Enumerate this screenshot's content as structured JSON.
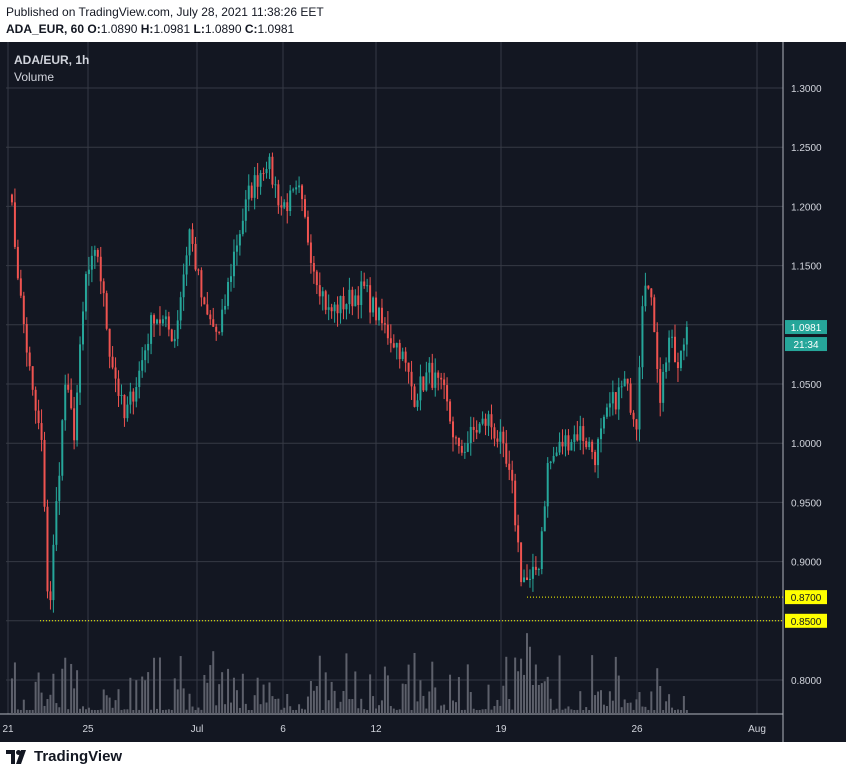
{
  "header": {
    "published": "Published on TradingView.com, July 28, 2021 11:38:26 EET",
    "symbol_interval": "ADA_EUR, 60",
    "o_label": "O:",
    "o_value": "1.0890",
    "h_label": "H:",
    "h_value": "1.0981",
    "l_label": "L:",
    "l_value": "1.0890",
    "c_label": "C:",
    "c_value": "1.0981"
  },
  "chart": {
    "title": "ADA/EUR, 1h",
    "volume_label": "Volume"
  },
  "footer": {
    "brand": "TradingView"
  },
  "colors": {
    "background": "#131722",
    "grid": "#363a45",
    "up": "#26a69a",
    "down": "#ef5350",
    "volume": "#5d606b",
    "axis_text": "#d1d4dc",
    "price_label": "#26a69a",
    "level": "#ffff00"
  },
  "chart_data": {
    "type": "candlestick",
    "symbol": "ADA/EUR",
    "interval": "1h",
    "ylim": [
      0.775,
      1.325
    ],
    "y_ticks": [
      "0.8000",
      "0.8500",
      "0.9000",
      "0.9500",
      "1.0000",
      "1.0500",
      "1.1000",
      "1.1500",
      "1.2000",
      "1.2500",
      "1.3000"
    ],
    "x_ticks": [
      "21",
      "25",
      "Jul",
      "6",
      "12",
      "19",
      "26",
      "Aug"
    ],
    "price_path": [
      {
        "x": 0,
        "y": 1.22
      },
      {
        "x": 4,
        "y": 1.12
      },
      {
        "x": 8,
        "y": 1.04
      },
      {
        "x": 11,
        "y": 1.0
      },
      {
        "x": 13.5,
        "y": 0.85
      },
      {
        "x": 15.5,
        "y": 0.93
      },
      {
        "x": 19,
        "y": 1.05
      },
      {
        "x": 22,
        "y": 1.01
      },
      {
        "x": 26,
        "y": 1.14
      },
      {
        "x": 30,
        "y": 1.16
      },
      {
        "x": 34,
        "y": 1.08
      },
      {
        "x": 39,
        "y": 1.02
      },
      {
        "x": 44,
        "y": 1.06
      },
      {
        "x": 49,
        "y": 1.11
      },
      {
        "x": 56,
        "y": 1.09
      },
      {
        "x": 61,
        "y": 1.18
      },
      {
        "x": 66,
        "y": 1.11
      },
      {
        "x": 71,
        "y": 1.09
      },
      {
        "x": 76,
        "y": 1.16
      },
      {
        "x": 81,
        "y": 1.21
      },
      {
        "x": 87,
        "y": 1.24
      },
      {
        "x": 92,
        "y": 1.2
      },
      {
        "x": 98,
        "y": 1.21
      },
      {
        "x": 103,
        "y": 1.15
      },
      {
        "x": 108,
        "y": 1.11
      },
      {
        "x": 114,
        "y": 1.12
      },
      {
        "x": 120,
        "y": 1.13
      },
      {
        "x": 126,
        "y": 1.1
      },
      {
        "x": 132,
        "y": 1.08
      },
      {
        "x": 137,
        "y": 1.04
      },
      {
        "x": 142,
        "y": 1.06
      },
      {
        "x": 147,
        "y": 1.04
      },
      {
        "x": 152,
        "y": 0.99
      },
      {
        "x": 157,
        "y": 1.01
      },
      {
        "x": 162,
        "y": 1.02
      },
      {
        "x": 166,
        "y": 1.0
      },
      {
        "x": 170,
        "y": 0.96
      },
      {
        "x": 173,
        "y": 0.89
      },
      {
        "x": 176,
        "y": 0.88
      },
      {
        "x": 179,
        "y": 0.9
      },
      {
        "x": 182,
        "y": 0.98
      },
      {
        "x": 187,
        "y": 1.0
      },
      {
        "x": 193,
        "y": 1.01
      },
      {
        "x": 198,
        "y": 0.99
      },
      {
        "x": 203,
        "y": 1.03
      },
      {
        "x": 208,
        "y": 1.05
      },
      {
        "x": 212,
        "y": 1.02
      },
      {
        "x": 214.5,
        "y": 1.15
      },
      {
        "x": 218,
        "y": 1.1
      },
      {
        "x": 220,
        "y": 1.04
      },
      {
        "x": 223,
        "y": 1.09
      },
      {
        "x": 226,
        "y": 1.06
      },
      {
        "x": 229,
        "y": 1.0981
      }
    ],
    "annotations": [
      {
        "label": "1.0981",
        "value": 1.0981,
        "kind": "last_price"
      },
      {
        "label": "21:34",
        "value": 1.0981,
        "kind": "countdown"
      },
      {
        "label": "0.8700",
        "value": 0.87,
        "kind": "horizontal_line"
      },
      {
        "label": "0.8500",
        "value": 0.85,
        "kind": "horizontal_line"
      }
    ]
  }
}
